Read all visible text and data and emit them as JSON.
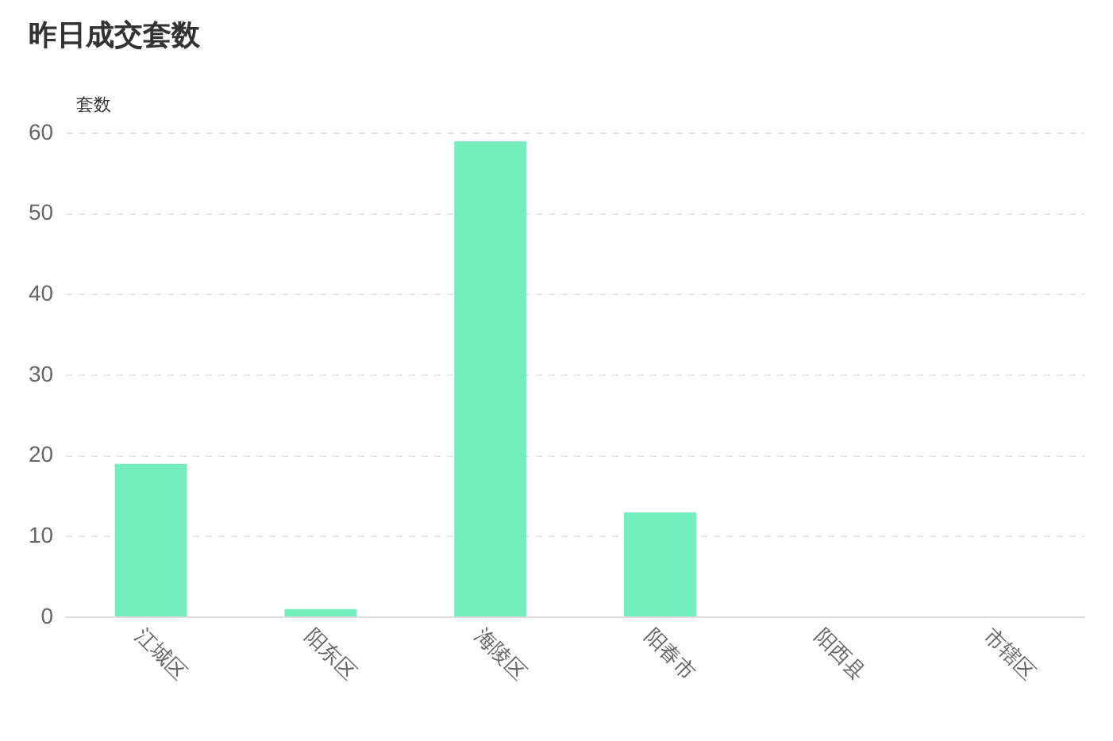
{
  "chart_data": {
    "type": "bar",
    "title": "昨日成交套数",
    "ylabel": "套数",
    "categories": [
      "江城区",
      "阳东区",
      "海陵区",
      "阳春市",
      "阳西县",
      "市辖区"
    ],
    "values": [
      19,
      1,
      59,
      13,
      0,
      0
    ],
    "color": "#74edbf",
    "ylim": [
      0,
      60
    ],
    "yticks": [
      0,
      10,
      20,
      30,
      40,
      50,
      60
    ],
    "grid": "y"
  }
}
